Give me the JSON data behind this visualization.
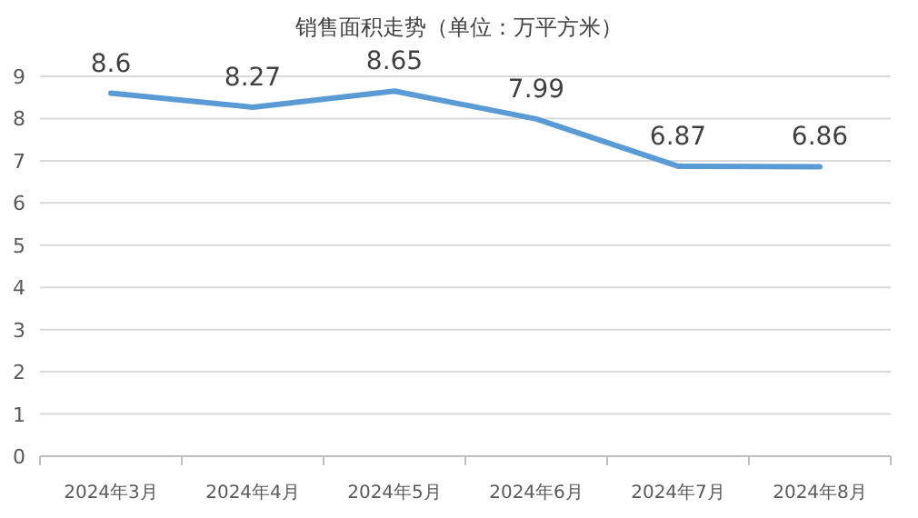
{
  "chart_data": {
    "type": "line",
    "title": "销售面积走势（单位：万平方米）",
    "categories": [
      "2024年3月",
      "2024年4月",
      "2024年5月",
      "2024年6月",
      "2024年7月",
      "2024年8月"
    ],
    "series": [
      {
        "color": "#5b9bd5",
        "values": [
          8.6,
          8.27,
          8.65,
          7.99,
          6.87,
          6.86
        ]
      }
    ],
    "ylim": [
      0,
      9
    ],
    "yticks": [
      0,
      1,
      2,
      3,
      4,
      5,
      6,
      7,
      8,
      9
    ],
    "grid": "y",
    "data_labels": true,
    "marker": "none",
    "line_style": "solid"
  }
}
